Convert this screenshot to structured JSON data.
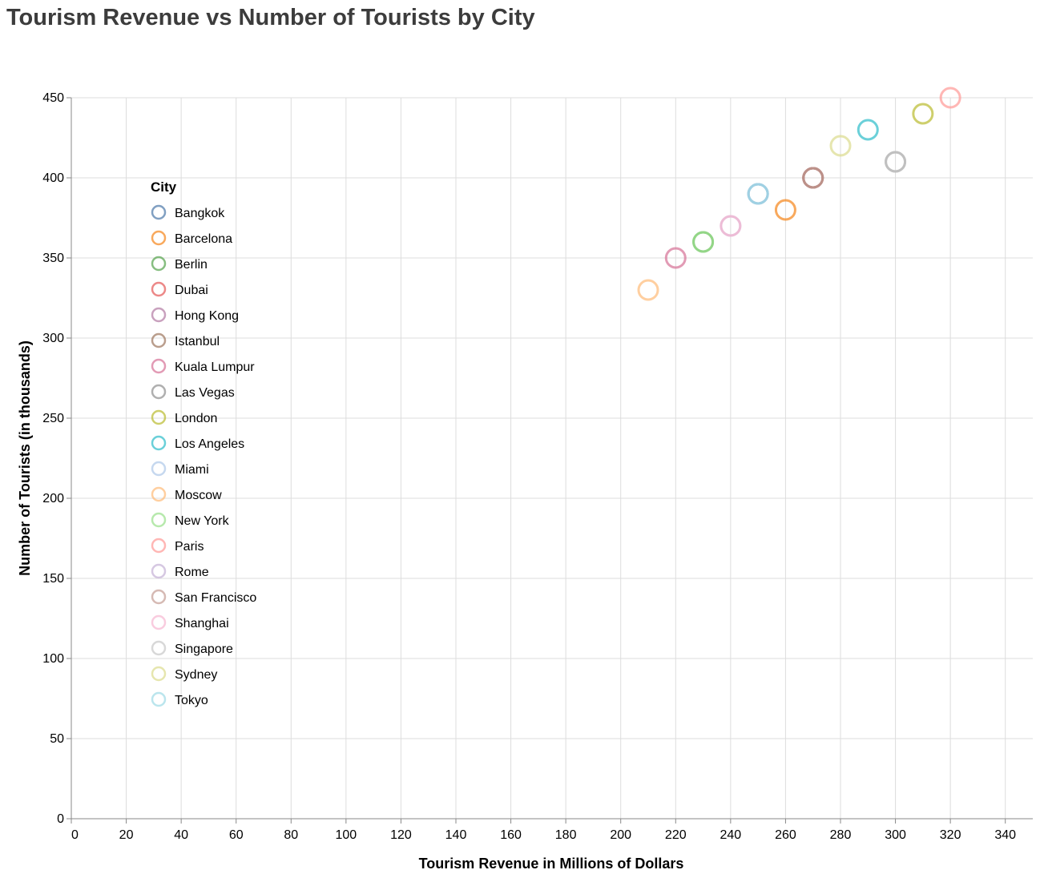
{
  "chart_data": {
    "type": "scatter",
    "title": "Tourism Revenue vs Number of Tourists by City",
    "xlabel": "Tourism Revenue in Millions of Dollars",
    "ylabel": "Number of Tourists (in thousands)",
    "xlim": [
      0,
      350
    ],
    "ylim": [
      0,
      450
    ],
    "x_ticks": [
      0,
      20,
      40,
      60,
      80,
      100,
      120,
      140,
      160,
      180,
      200,
      220,
      240,
      260,
      280,
      300,
      320,
      340
    ],
    "y_ticks": [
      0,
      50,
      100,
      150,
      200,
      250,
      300,
      350,
      400,
      450
    ],
    "grid": true,
    "legend_title": "City",
    "legend_placement": "inside-left",
    "series": [
      {
        "name": "Bangkok",
        "color": "#4c78a8",
        "points": [
          [
            250,
            390
          ]
        ]
      },
      {
        "name": "Barcelona",
        "color": "#f58518",
        "points": [
          [
            260,
            380
          ]
        ]
      },
      {
        "name": "Berlin",
        "color": "#54a24b",
        "points": [
          [
            230,
            360
          ]
        ]
      },
      {
        "name": "Dubai",
        "color": "#e45756",
        "points": [
          [
            270,
            400
          ]
        ]
      },
      {
        "name": "Hong Kong",
        "color": "#b279a2",
        "points": [
          [
            270,
            400
          ]
        ]
      },
      {
        "name": "Istanbul",
        "color": "#9d755d",
        "points": [
          [
            270,
            400
          ]
        ]
      },
      {
        "name": "Kuala Lumpur",
        "color": "#d67195",
        "points": [
          [
            220,
            350
          ]
        ]
      },
      {
        "name": "Las Vegas",
        "color": "#8f8f8f",
        "points": [
          [
            300,
            410
          ]
        ]
      },
      {
        "name": "London",
        "color": "#b9bb2e",
        "points": [
          [
            310,
            440
          ]
        ]
      },
      {
        "name": "Los Angeles",
        "color": "#2cbcc9",
        "points": [
          [
            290,
            430
          ]
        ]
      },
      {
        "name": "Miami",
        "color": "#aec7e8",
        "points": [
          [
            250,
            390
          ]
        ]
      },
      {
        "name": "Moscow",
        "color": "#ffbb78",
        "points": [
          [
            210,
            330
          ]
        ]
      },
      {
        "name": "New York",
        "color": "#98df8a",
        "points": [
          [
            230,
            360
          ]
        ]
      },
      {
        "name": "Paris",
        "color": "#ff9896",
        "points": [
          [
            320,
            450
          ]
        ]
      },
      {
        "name": "Rome",
        "color": "#c5b0d5",
        "points": [
          [
            240,
            370
          ]
        ]
      },
      {
        "name": "San Francisco",
        "color": "#c49c94",
        "points": [
          [
            270,
            400
          ]
        ]
      },
      {
        "name": "Shanghai",
        "color": "#f7b6d2",
        "points": [
          [
            240,
            370
          ]
        ]
      },
      {
        "name": "Singapore",
        "color": "#c7c7c7",
        "points": [
          [
            300,
            410
          ]
        ]
      },
      {
        "name": "Sydney",
        "color": "#dbdb8d",
        "points": [
          [
            280,
            420
          ]
        ]
      },
      {
        "name": "Tokyo",
        "color": "#9edae5",
        "points": [
          [
            250,
            390
          ]
        ]
      }
    ]
  }
}
